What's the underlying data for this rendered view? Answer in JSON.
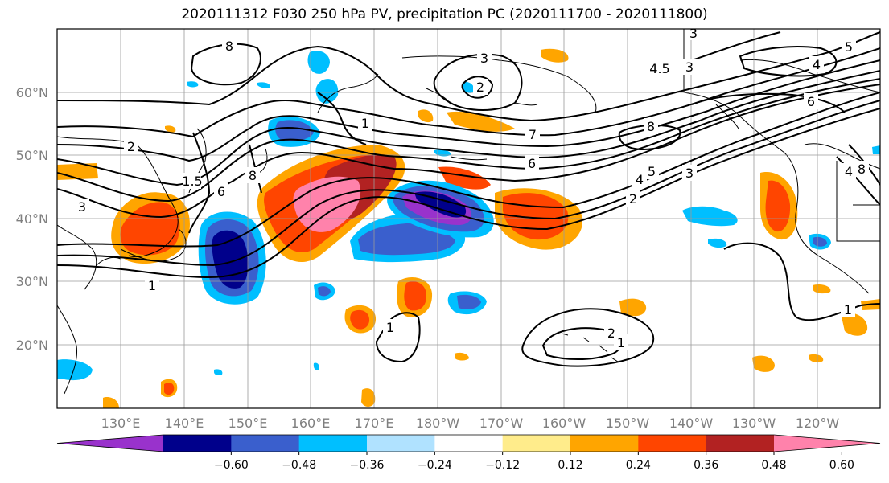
{
  "title": "2020111312 F030 250 hPa PV, precipitation PC (2020111700 - 2020111800)",
  "map": {
    "lat_labels": [
      "60°N",
      "50°N",
      "40°N",
      "30°N",
      "20°N"
    ],
    "lon_labels": [
      "130°E",
      "140°E",
      "150°E",
      "160°E",
      "170°E",
      "180°W",
      "170°W",
      "160°W",
      "150°W",
      "140°W",
      "130°W",
      "120°W"
    ],
    "pv_labels": [
      {
        "text": "8"
      },
      {
        "text": "3"
      },
      {
        "text": "2"
      },
      {
        "text": "1.5"
      },
      {
        "text": "6"
      },
      {
        "text": "8"
      },
      {
        "text": "1"
      },
      {
        "text": "2"
      },
      {
        "text": "3"
      },
      {
        "text": "7"
      },
      {
        "text": "6"
      },
      {
        "text": "4"
      },
      {
        "text": "5"
      },
      {
        "text": "8"
      },
      {
        "text": "4.5"
      },
      {
        "text": "3"
      },
      {
        "text": "3"
      },
      {
        "text": "4"
      },
      {
        "text": "6"
      },
      {
        "text": "2"
      },
      {
        "text": "3"
      },
      {
        "text": "4"
      },
      {
        "text": "5"
      },
      {
        "text": "8"
      },
      {
        "text": "1"
      },
      {
        "text": "1"
      },
      {
        "text": "2"
      },
      {
        "text": "1"
      },
      {
        "text": "1"
      }
    ]
  },
  "colorbar": {
    "colors": [
      "#9932cc",
      "#00008b",
      "#3a5fcd",
      "#00bfff",
      "#b0e2ff",
      "#ffffff",
      "#ffec8b",
      "#ffa500",
      "#ff4500",
      "#b22222",
      "#ff82ab"
    ],
    "tick_labels": [
      "−0.60",
      "−0.48",
      "−0.36",
      "−0.24",
      "−0.12",
      "0.12",
      "0.24",
      "0.36",
      "0.48",
      "0.60"
    ]
  }
}
